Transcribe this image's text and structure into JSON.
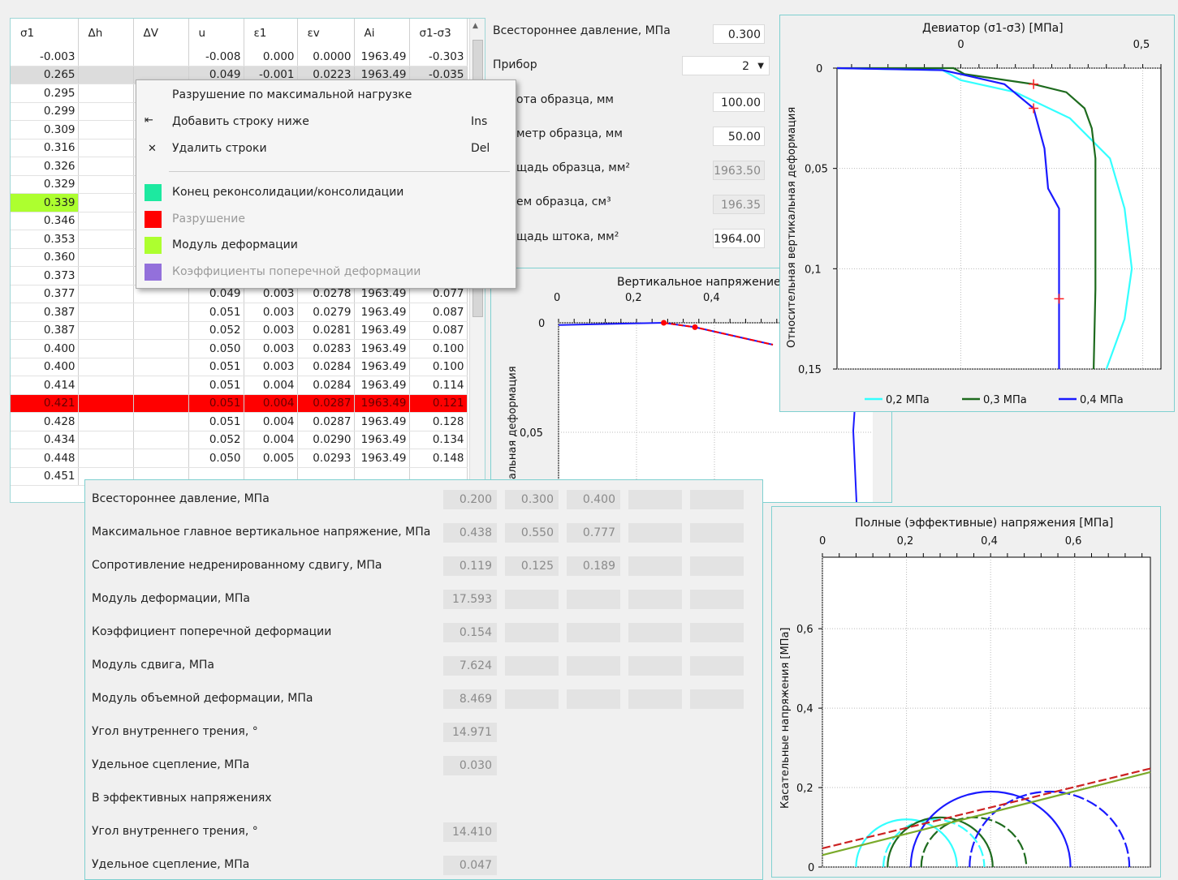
{
  "table": {
    "headers": [
      "σ1",
      "Δh",
      "ΔV",
      "u",
      "ε1",
      "εv",
      "Ai",
      "σ1-σ3"
    ],
    "rows": [
      [
        "-0.003",
        "",
        "",
        "-0.008",
        "0.000",
        "0.0000",
        "1963.49",
        "-0.303"
      ],
      [
        "0.265",
        "",
        "",
        "0.049",
        "-0.001",
        "0.0223",
        "1963.49",
        "-0.035"
      ],
      [
        "0.295",
        "",
        "",
        "",
        "",
        "",
        "",
        ""
      ],
      [
        "0.299",
        "",
        "",
        "",
        "",
        "",
        "",
        ""
      ],
      [
        "0.309",
        "",
        "",
        "",
        "",
        "",
        "",
        ""
      ],
      [
        "0.316",
        "",
        "",
        "",
        "",
        "",
        "",
        ""
      ],
      [
        "0.326",
        "",
        "",
        "",
        "",
        "",
        "",
        ""
      ],
      [
        "0.329",
        "",
        "",
        "",
        "",
        "",
        "",
        ""
      ],
      [
        "0.339",
        "",
        "",
        "",
        "",
        "",
        "",
        ""
      ],
      [
        "0.346",
        "",
        "",
        "",
        "",
        "",
        "",
        ""
      ],
      [
        "0.353",
        "",
        "",
        "",
        "",
        "",
        "",
        ""
      ],
      [
        "0.360",
        "",
        "",
        "",
        "",
        "",
        "",
        ""
      ],
      [
        "0.373",
        "",
        "",
        "",
        "",
        "",
        "",
        ""
      ],
      [
        "0.377",
        "",
        "",
        "0.049",
        "0.003",
        "0.0278",
        "1963.49",
        "0.077"
      ],
      [
        "0.387",
        "",
        "",
        "0.051",
        "0.003",
        "0.0279",
        "1963.49",
        "0.087"
      ],
      [
        "0.387",
        "",
        "",
        "0.052",
        "0.003",
        "0.0281",
        "1963.49",
        "0.087"
      ],
      [
        "0.400",
        "",
        "",
        "0.050",
        "0.003",
        "0.0283",
        "1963.49",
        "0.100"
      ],
      [
        "0.400",
        "",
        "",
        "0.051",
        "0.003",
        "0.0284",
        "1963.49",
        "0.100"
      ],
      [
        "0.414",
        "",
        "",
        "0.051",
        "0.004",
        "0.0284",
        "1963.49",
        "0.114"
      ],
      [
        "0.421",
        "",
        "",
        "0.051",
        "0.004",
        "0.0287",
        "1963.49",
        "0.121"
      ],
      [
        "0.428",
        "",
        "",
        "0.051",
        "0.004",
        "0.0287",
        "1963.49",
        "0.128"
      ],
      [
        "0.434",
        "",
        "",
        "0.052",
        "0.004",
        "0.0290",
        "1963.49",
        "0.134"
      ],
      [
        "0.448",
        "",
        "",
        "0.050",
        "0.005",
        "0.0293",
        "1963.49",
        "0.148"
      ],
      [
        "0.451",
        "",
        "",
        "",
        "",
        "",
        "",
        ""
      ]
    ],
    "selected_row": 1,
    "green_row": 8,
    "red_row": 19
  },
  "params": {
    "pressure_label": "Всестороннее давление, МПа",
    "pressure_value": "0.300",
    "device_label": "Прибор",
    "device_value": "2",
    "height_label": "ота образца, мм",
    "height_value": "100.00",
    "diameter_label": "метр образца, мм",
    "diameter_value": "50.00",
    "area_label": "щадь образца, мм²",
    "area_value": "1963.50",
    "volume_label": "ем образца, см³",
    "volume_value": "196.35",
    "rod_label": "щадь штока, мм²",
    "rod_value": "1964.00"
  },
  "context_menu": {
    "failure_max": "Разрушение по максимальной нагрузке",
    "add_row": "Добавить строку ниже",
    "add_row_key": "Ins",
    "delete_rows": "Удалить строки",
    "delete_rows_key": "Del",
    "end_consolidation": "Конец реконсолидации/консолидации",
    "failure": "Разрушение",
    "deformation_modulus": "Модуль деформации",
    "poisson": "Коэффициенты поперечной деформации",
    "colors": {
      "consolidation": "#1de9a0",
      "failure": "#ff0000",
      "modulus": "#adff2f",
      "poisson": "#9370db"
    }
  },
  "results": {
    "rows": [
      {
        "label": "Всестороннее давление, МПа",
        "values": [
          "0.200",
          "0.300",
          "0.400",
          "",
          ""
        ]
      },
      {
        "label": "Максимальное главное вертикальное напряжение, МПа",
        "values": [
          "0.438",
          "0.550",
          "0.777",
          "",
          ""
        ]
      },
      {
        "label": "Сопротивление недренированному сдвигу, МПа",
        "values": [
          "0.119",
          "0.125",
          "0.189",
          "",
          ""
        ]
      },
      {
        "label": "Модуль деформации, МПа",
        "values": [
          "17.593",
          "",
          "",
          "",
          ""
        ]
      },
      {
        "label": "Коэффициент поперечной деформации",
        "values": [
          "0.154",
          "",
          "",
          "",
          ""
        ]
      },
      {
        "label": "Модуль сдвига, МПа",
        "values": [
          "7.624",
          "",
          "",
          "",
          ""
        ]
      },
      {
        "label": "Модуль объемной деформации, МПа",
        "values": [
          "8.469",
          "",
          "",
          "",
          ""
        ]
      },
      {
        "label": "Угол внутреннего трения, °",
        "values": [
          "14.971"
        ]
      },
      {
        "label": "Удельное сцепление, МПа",
        "values": [
          "0.030"
        ]
      },
      {
        "label": "В эффективных напряжениях",
        "values": []
      },
      {
        "label": "Угол внутреннего трения, °",
        "values": [
          "14.410"
        ]
      },
      {
        "label": "Удельное сцепление, МПа",
        "values": [
          "0.047"
        ]
      }
    ]
  },
  "chart_data": [
    {
      "type": "line",
      "title": "Вертикальное напряжение",
      "ylabel": "альная деформация",
      "x_ticks": [
        "0",
        "0,2",
        "0,4"
      ],
      "y_ticks": [
        "0",
        "0,05"
      ],
      "series": [
        {
          "color": "#1a1aff",
          "points": [
            [
              0,
              0.001
            ],
            [
              0.27,
              0
            ],
            [
              0.35,
              0.002
            ],
            [
              0.55,
              0.01
            ]
          ]
        },
        {
          "color": "#ff0000",
          "points": [
            [
              0.27,
              0
            ],
            [
              0.35,
              0.002
            ],
            [
              0.55,
              0.01
            ]
          ]
        }
      ]
    },
    {
      "type": "line",
      "title": "Девиатор (σ1-σ3) [МПа]",
      "ylabel": "Относительная вертикальная деформация",
      "x_ticks": [
        "0",
        "0,5"
      ],
      "y_ticks": [
        "0",
        "0,05",
        "0,1",
        "0,15"
      ],
      "xlim": [
        -0.34,
        0.55
      ],
      "ylim": [
        0,
        0.15
      ],
      "series": [
        {
          "name": "0,2 МПа",
          "color": "#33ffff",
          "points": [
            [
              -0.34,
              0
            ],
            [
              -0.05,
              0.001
            ],
            [
              0.0,
              0.006
            ],
            [
              0.15,
              0.012
            ],
            [
              0.3,
              0.025
            ],
            [
              0.41,
              0.045
            ],
            [
              0.45,
              0.07
            ],
            [
              0.47,
              0.1
            ],
            [
              0.45,
              0.125
            ],
            [
              0.4,
              0.15
            ]
          ]
        },
        {
          "name": "0,3 МПа",
          "color": "#1e6b1e",
          "points": [
            [
              -0.34,
              0
            ],
            [
              -0.02,
              0
            ],
            [
              0.01,
              0.003
            ],
            [
              0.2,
              0.008
            ],
            [
              0.29,
              0.012
            ],
            [
              0.34,
              0.02
            ],
            [
              0.36,
              0.03
            ],
            [
              0.37,
              0.045
            ],
            [
              0.37,
              0.08
            ],
            [
              0.37,
              0.11
            ],
            [
              0.365,
              0.15
            ]
          ]
        },
        {
          "name": "0,4 МПа",
          "color": "#1a1aff",
          "points": [
            [
              -0.34,
              0
            ],
            [
              -0.05,
              0.001
            ],
            [
              0.0,
              0.003
            ],
            [
              0.12,
              0.008
            ],
            [
              0.2,
              0.02
            ],
            [
              0.23,
              0.04
            ],
            [
              0.24,
              0.06
            ],
            [
              0.27,
              0.07
            ],
            [
              0.27,
              0.1
            ],
            [
              0.27,
              0.15
            ]
          ]
        }
      ],
      "markers": [
        [
          0.2,
          0.008
        ],
        [
          0.2,
          0.02
        ],
        [
          0.27,
          0.115
        ]
      ]
    },
    {
      "type": "line",
      "title": "Полные (эффективные) напряжения [МПа]",
      "ylabel": "Касательные напряжения [МПа]",
      "x_ticks": [
        "0",
        "0,2",
        "0,4",
        "0,6"
      ],
      "y_ticks": [
        "0",
        "0,2",
        "0,4",
        "0,6"
      ],
      "xlim": [
        0,
        0.78
      ],
      "ylim": [
        0,
        0.78
      ],
      "circles": [
        {
          "center": 0.2,
          "radius": 0.12,
          "color": "#33ffff"
        },
        {
          "center": 0.265,
          "radius": 0.12,
          "color": "#33ffff"
        },
        {
          "center": 0.28,
          "radius": 0.125,
          "color": "#1e6b1e"
        },
        {
          "center": 0.36,
          "radius": 0.125,
          "color": "#1e6b1e"
        },
        {
          "center": 0.4,
          "radius": 0.19,
          "color": "#1a1aff"
        },
        {
          "center": 0.54,
          "radius": 0.19,
          "color": "#1a1aff"
        }
      ],
      "lines": [
        {
          "color": "#cc2222",
          "dashed": true,
          "points": [
            [
              0,
              0.047
            ],
            [
              0.78,
              0.248
            ]
          ]
        },
        {
          "color": "#7aaa2a",
          "dashed": false,
          "points": [
            [
              0,
              0.03
            ],
            [
              0.78,
              0.239
            ]
          ]
        }
      ]
    }
  ]
}
